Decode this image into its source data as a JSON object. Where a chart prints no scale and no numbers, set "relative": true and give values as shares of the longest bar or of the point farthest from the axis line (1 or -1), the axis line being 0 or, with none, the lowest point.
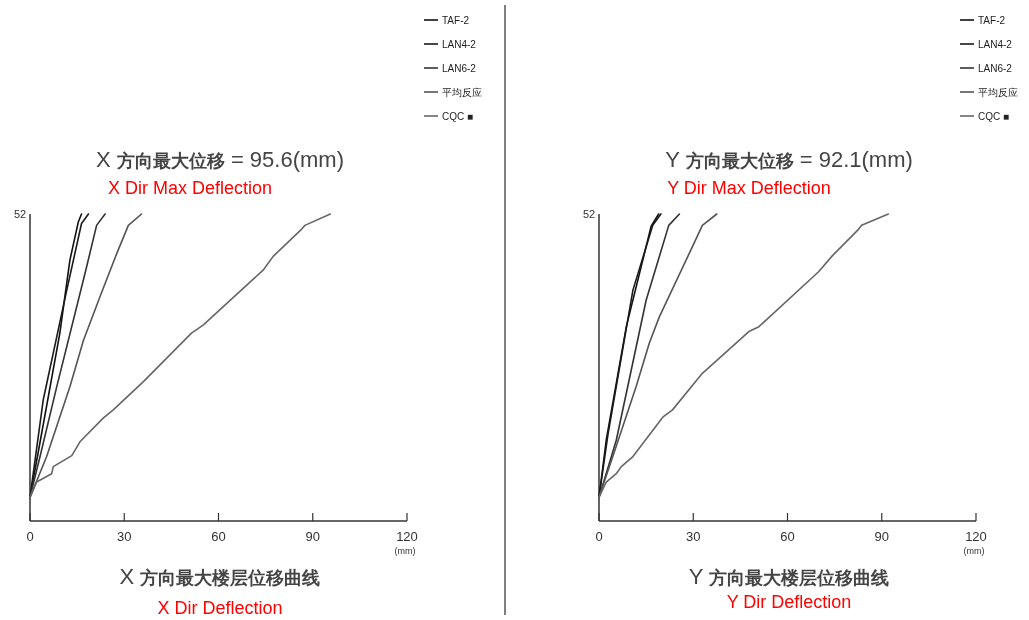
{
  "chart_data": [
    {
      "type": "line",
      "title": "X **方向最大位移** = 95.6(mm)",
      "subtitle": "X Dir Max Deflection",
      "xlabel": "(mm)",
      "annotations": [
        "X **方向最大楼层位移曲线**",
        "X Dir Deflection",
        "52"
      ],
      "legend": "top right",
      "relative": true,
      "xlim": [
        0,
        120
      ],
      "xticks": [
        0,
        30,
        60,
        90,
        120
      ],
      "series": [
        {
          "name": "TAF-2",
          "color": "#111111",
          "x": [
            0,
            3.7,
            9.5,
            12.7,
            15.4,
            16.4
          ],
          "values": [
            0.077,
            0.285,
            0.612,
            0.85,
            0.975,
            1
          ]
        },
        {
          "name": "LAN4-2",
          "color": "#1a1a1a",
          "x": [
            0,
            4.2,
            11.7,
            16.4,
            18.6
          ],
          "values": [
            0.077,
            0.394,
            0.752,
            0.969,
            1
          ]
        },
        {
          "name": "LAN6-2",
          "color": "#333333",
          "x": [
            0,
            3.2,
            8.5,
            17.5,
            21.2,
            23.9
          ],
          "values": [
            0.077,
            0.21,
            0.437,
            0.806,
            0.963,
            1
          ]
        },
        {
          "name": "平均反应",
          "color": "#555555",
          "x": [
            0,
            5.3,
            12.7,
            17.0,
            22.3,
            27.6,
            31.3,
            35.5
          ],
          "values": [
            0.077,
            0.21,
            0.437,
            0.588,
            0.731,
            0.871,
            0.963,
            1
          ]
        },
        {
          "name": "CQC ■",
          "color": "#666666",
          "x": [
            0,
            2.1,
            6.9,
            7.4,
            13.3,
            15.9,
            23.3,
            26.5,
            36.1,
            51.4,
            55.1,
            74.2,
            77.4,
            86.4,
            87.5,
            95.6
          ],
          "values": [
            0.077,
            0.127,
            0.154,
            0.177,
            0.213,
            0.258,
            0.335,
            0.362,
            0.454,
            0.612,
            0.638,
            0.817,
            0.862,
            0.95,
            0.963,
            1
          ]
        }
      ]
    },
    {
      "type": "line",
      "title": "Y **方向最大位移** = 92.1(mm)",
      "subtitle": "Y Dir Max Deflection",
      "xlabel": "(mm)",
      "annotations": [
        "Y **方向最大楼层位移曲线**",
        "Y Dir Deflection",
        "52"
      ],
      "legend": "top right",
      "relative": true,
      "xlim": [
        0,
        120
      ],
      "xticks": [
        0,
        30,
        60,
        90,
        120
      ],
      "series": [
        {
          "name": "TAF-2",
          "color": "#111111",
          "x": [
            0,
            2.3,
            8.7,
            16.6,
            19.0
          ],
          "values": [
            0.077,
            0.263,
            0.633,
            0.96,
            1
          ]
        },
        {
          "name": "LAN4-2",
          "color": "#1a1a1a",
          "x": [
            0,
            2.9,
            10.8,
            17.1,
            19.7
          ],
          "values": [
            0.077,
            0.285,
            0.752,
            0.963,
            1
          ]
        },
        {
          "name": "LAN6-2",
          "color": "#333333",
          "x": [
            0,
            5.5,
            15.0,
            22.2,
            25.6
          ],
          "values": [
            0.077,
            0.263,
            0.719,
            0.963,
            1
          ]
        },
        {
          "name": "平均反应",
          "color": "#555555",
          "x": [
            0,
            4.4,
            11.8,
            16.0,
            19.2,
            28.7,
            32.9,
            37.5
          ],
          "values": [
            0.077,
            0.21,
            0.437,
            0.579,
            0.665,
            0.871,
            0.963,
            1
          ]
        },
        {
          "name": "CQC ■",
          "color": "#666666",
          "x": [
            0,
            2.3,
            5.5,
            7.1,
            10.8,
            20.3,
            23.4,
            32.9,
            47.7,
            50.9,
            69.9,
            74.1,
            82.6,
            83.6,
            92.1
          ],
          "values": [
            0.077,
            0.127,
            0.154,
            0.177,
            0.21,
            0.338,
            0.362,
            0.481,
            0.617,
            0.633,
            0.812,
            0.862,
            0.95,
            0.963,
            1
          ]
        }
      ]
    }
  ]
}
